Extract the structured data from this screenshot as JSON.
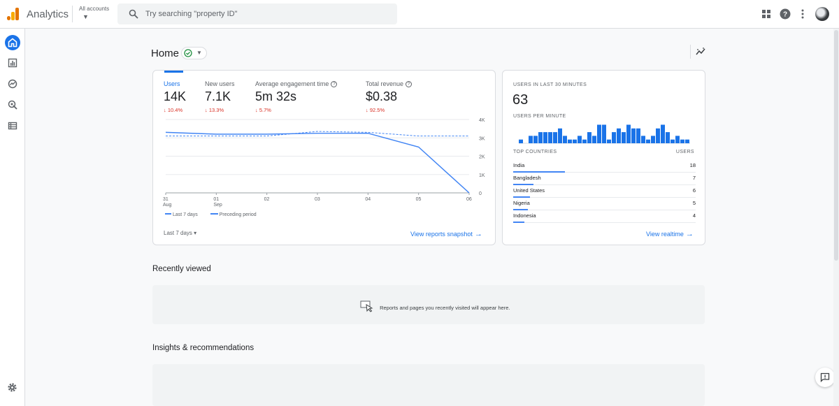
{
  "app": {
    "title": "Analytics"
  },
  "header": {
    "accounts_label": "All accounts",
    "search_placeholder": "Try searching \"property ID\""
  },
  "page": {
    "title": "Home"
  },
  "metrics": [
    {
      "label": "Users",
      "value": "14K",
      "change": "10.4%",
      "active": true
    },
    {
      "label": "New users",
      "value": "7.1K",
      "change": "13.3%"
    },
    {
      "label": "Average engagement time",
      "value": "5m 32s",
      "change": "5.7%"
    },
    {
      "label": "Total revenue",
      "value": "$0.38",
      "change": "92.5%"
    }
  ],
  "chart_data": {
    "type": "line",
    "x": [
      "31 Aug",
      "01 Sep",
      "02",
      "03",
      "04",
      "05",
      "06"
    ],
    "y_ticks": [
      "4K",
      "3K",
      "2K",
      "1K",
      "0"
    ],
    "ylim": [
      0,
      4000
    ],
    "series": [
      {
        "name": "Last 7 days",
        "values": [
          3300,
          3200,
          3200,
          3250,
          3250,
          2500,
          0
        ],
        "style": "solid",
        "color": "#4285f4"
      },
      {
        "name": "Preceding period",
        "values": [
          3100,
          3100,
          3100,
          3350,
          3300,
          3100,
          3100
        ],
        "style": "dashed",
        "color": "#4285f4"
      }
    ],
    "legend_position": "bottom-left",
    "grid": true
  },
  "metrics_card": {
    "period": "Last 7 days",
    "link": "View reports snapshot"
  },
  "realtime": {
    "title": "USERS IN LAST 30 MINUTES",
    "value": "63",
    "per_minute_title": "USERS PER MINUTE",
    "per_minute": [
      1,
      0,
      2,
      2,
      3,
      3,
      3,
      3,
      4,
      2,
      1,
      1,
      2,
      1,
      3,
      2,
      5,
      5,
      1,
      3,
      4,
      3,
      5,
      4,
      4,
      2,
      1,
      2,
      4,
      5,
      3,
      1,
      2,
      1,
      1
    ],
    "countries_header": "TOP COUNTRIES",
    "users_header": "USERS",
    "countries": [
      {
        "name": "India",
        "users": "18",
        "share": 1.0
      },
      {
        "name": "Bangladesh",
        "users": "7",
        "share": 0.39
      },
      {
        "name": "United States",
        "users": "6",
        "share": 0.33
      },
      {
        "name": "Nigeria",
        "users": "5",
        "share": 0.28
      },
      {
        "name": "Indonesia",
        "users": "4",
        "share": 0.22
      }
    ],
    "link": "View realtime"
  },
  "recently_viewed": {
    "title": "Recently viewed",
    "empty_message": "Reports and pages you recently visited will appear here."
  },
  "insights": {
    "title": "Insights & recommendations"
  },
  "colors": {
    "accent": "#1a73e8",
    "negative": "#d93025",
    "series": "#4285f4"
  }
}
